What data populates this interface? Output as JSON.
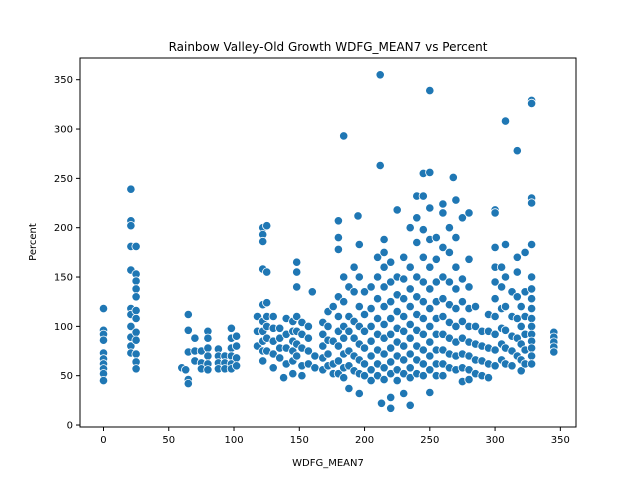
{
  "chart_data": {
    "type": "scatter",
    "title": "Rainbow Valley-Old Growth WDFG_MEAN7 vs Percent",
    "xlabel": "WDFG_MEAN7",
    "ylabel": "Percent",
    "xlim": [
      -18,
      362
    ],
    "ylim": [
      -2,
      372
    ],
    "xticks": [
      0,
      50,
      100,
      150,
      200,
      250,
      300,
      350
    ],
    "yticks": [
      0,
      50,
      100,
      150,
      200,
      250,
      300,
      350
    ],
    "grid": false,
    "marker_color": "#1f77b4",
    "marker_edge": "#ffffff",
    "points": [
      [
        0,
        118
      ],
      [
        0,
        96
      ],
      [
        0,
        92
      ],
      [
        0,
        86
      ],
      [
        0,
        73
      ],
      [
        0,
        67
      ],
      [
        0,
        62
      ],
      [
        0,
        57
      ],
      [
        0,
        52
      ],
      [
        0,
        45
      ],
      [
        21,
        239
      ],
      [
        21,
        207
      ],
      [
        21,
        202
      ],
      [
        21,
        181
      ],
      [
        21,
        157
      ],
      [
        21,
        118
      ],
      [
        21,
        112
      ],
      [
        21,
        100
      ],
      [
        21,
        89
      ],
      [
        21,
        80
      ],
      [
        21,
        73
      ],
      [
        25,
        181
      ],
      [
        25,
        153
      ],
      [
        25,
        146
      ],
      [
        25,
        138
      ],
      [
        25,
        130
      ],
      [
        25,
        116
      ],
      [
        25,
        108
      ],
      [
        25,
        94
      ],
      [
        25,
        86
      ],
      [
        25,
        72
      ],
      [
        25,
        64
      ],
      [
        25,
        57
      ],
      [
        60,
        58
      ],
      [
        63,
        56
      ],
      [
        65,
        112
      ],
      [
        65,
        96
      ],
      [
        65,
        74
      ],
      [
        65,
        46
      ],
      [
        65,
        42
      ],
      [
        70,
        88
      ],
      [
        70,
        75
      ],
      [
        70,
        65
      ],
      [
        75,
        75
      ],
      [
        75,
        63
      ],
      [
        75,
        57
      ],
      [
        80,
        95
      ],
      [
        80,
        88
      ],
      [
        80,
        78
      ],
      [
        80,
        70
      ],
      [
        80,
        62
      ],
      [
        80,
        56
      ],
      [
        88,
        77
      ],
      [
        88,
        70
      ],
      [
        88,
        63
      ],
      [
        88,
        57
      ],
      [
        93,
        70
      ],
      [
        93,
        63
      ],
      [
        93,
        57
      ],
      [
        98,
        98
      ],
      [
        98,
        88
      ],
      [
        98,
        78
      ],
      [
        98,
        70
      ],
      [
        98,
        62
      ],
      [
        98,
        57
      ],
      [
        102,
        90
      ],
      [
        102,
        80
      ],
      [
        102,
        68
      ],
      [
        102,
        60
      ],
      [
        118,
        110
      ],
      [
        118,
        95
      ],
      [
        118,
        80
      ],
      [
        122,
        200
      ],
      [
        122,
        193
      ],
      [
        122,
        186
      ],
      [
        122,
        158
      ],
      [
        122,
        122
      ],
      [
        122,
        105
      ],
      [
        122,
        95
      ],
      [
        122,
        85
      ],
      [
        122,
        75
      ],
      [
        122,
        65
      ],
      [
        125,
        202
      ],
      [
        125,
        155
      ],
      [
        125,
        124
      ],
      [
        125,
        110
      ],
      [
        125,
        100
      ],
      [
        125,
        88
      ],
      [
        125,
        75
      ],
      [
        130,
        110
      ],
      [
        130,
        98
      ],
      [
        130,
        85
      ],
      [
        130,
        72
      ],
      [
        130,
        58
      ],
      [
        135,
        98
      ],
      [
        135,
        88
      ],
      [
        135,
        78
      ],
      [
        135,
        68
      ],
      [
        138,
        48
      ],
      [
        140,
        108
      ],
      [
        140,
        92
      ],
      [
        140,
        78
      ],
      [
        140,
        62
      ],
      [
        145,
        105
      ],
      [
        145,
        95
      ],
      [
        145,
        85
      ],
      [
        145,
        75
      ],
      [
        145,
        65
      ],
      [
        145,
        52
      ],
      [
        148,
        165
      ],
      [
        148,
        155
      ],
      [
        148,
        140
      ],
      [
        148,
        110
      ],
      [
        148,
        95
      ],
      [
        148,
        82
      ],
      [
        148,
        70
      ],
      [
        152,
        104
      ],
      [
        152,
        92
      ],
      [
        152,
        78
      ],
      [
        152,
        60
      ],
      [
        152,
        50
      ],
      [
        157,
        100
      ],
      [
        157,
        88
      ],
      [
        157,
        75
      ],
      [
        157,
        62
      ],
      [
        160,
        135
      ],
      [
        162,
        70
      ],
      [
        162,
        58
      ],
      [
        168,
        104
      ],
      [
        168,
        92
      ],
      [
        168,
        80
      ],
      [
        168,
        68
      ],
      [
        168,
        56
      ],
      [
        172,
        115
      ],
      [
        172,
        100
      ],
      [
        172,
        86
      ],
      [
        172,
        72
      ],
      [
        172,
        60
      ],
      [
        176,
        120
      ],
      [
        176,
        85
      ],
      [
        176,
        62
      ],
      [
        176,
        52
      ],
      [
        180,
        207
      ],
      [
        180,
        190
      ],
      [
        180,
        178
      ],
      [
        180,
        130
      ],
      [
        180,
        110
      ],
      [
        180,
        95
      ],
      [
        180,
        80
      ],
      [
        180,
        65
      ],
      [
        180,
        52
      ],
      [
        184,
        293
      ],
      [
        184,
        150
      ],
      [
        184,
        125
      ],
      [
        184,
        100
      ],
      [
        184,
        88
      ],
      [
        184,
        72
      ],
      [
        184,
        58
      ],
      [
        184,
        48
      ],
      [
        188,
        140
      ],
      [
        188,
        110
      ],
      [
        188,
        95
      ],
      [
        188,
        75
      ],
      [
        188,
        60
      ],
      [
        188,
        37
      ],
      [
        192,
        160
      ],
      [
        192,
        135
      ],
      [
        192,
        105
      ],
      [
        192,
        88
      ],
      [
        192,
        70
      ],
      [
        192,
        55
      ],
      [
        195,
        212
      ],
      [
        196,
        183
      ],
      [
        196,
        150
      ],
      [
        196,
        120
      ],
      [
        196,
        100
      ],
      [
        196,
        82
      ],
      [
        196,
        66
      ],
      [
        196,
        52
      ],
      [
        196,
        32
      ],
      [
        200,
        135
      ],
      [
        200,
        112
      ],
      [
        200,
        95
      ],
      [
        200,
        78
      ],
      [
        200,
        62
      ],
      [
        200,
        50
      ],
      [
        205,
        140
      ],
      [
        205,
        118
      ],
      [
        205,
        100
      ],
      [
        205,
        85
      ],
      [
        205,
        70
      ],
      [
        205,
        56
      ],
      [
        205,
        45
      ],
      [
        210,
        170
      ],
      [
        210,
        150
      ],
      [
        210,
        128
      ],
      [
        210,
        108
      ],
      [
        210,
        92
      ],
      [
        210,
        76
      ],
      [
        210,
        62
      ],
      [
        210,
        50
      ],
      [
        212,
        355
      ],
      [
        212,
        263
      ],
      [
        213,
        22
      ],
      [
        215,
        188
      ],
      [
        215,
        175
      ],
      [
        215,
        160
      ],
      [
        215,
        140
      ],
      [
        215,
        120
      ],
      [
        215,
        102
      ],
      [
        215,
        88
      ],
      [
        215,
        72
      ],
      [
        215,
        58
      ],
      [
        215,
        46
      ],
      [
        220,
        165
      ],
      [
        220,
        145
      ],
      [
        220,
        125
      ],
      [
        220,
        108
      ],
      [
        220,
        92
      ],
      [
        220,
        78
      ],
      [
        220,
        64
      ],
      [
        220,
        52
      ],
      [
        220,
        28
      ],
      [
        220,
        17
      ],
      [
        225,
        218
      ],
      [
        225,
        150
      ],
      [
        225,
        132
      ],
      [
        225,
        115
      ],
      [
        225,
        98
      ],
      [
        225,
        84
      ],
      [
        225,
        70
      ],
      [
        225,
        56
      ],
      [
        225,
        45
      ],
      [
        230,
        170
      ],
      [
        230,
        148
      ],
      [
        230,
        128
      ],
      [
        230,
        110
      ],
      [
        230,
        95
      ],
      [
        230,
        80
      ],
      [
        230,
        66
      ],
      [
        230,
        52
      ],
      [
        230,
        32
      ],
      [
        235,
        200
      ],
      [
        235,
        160
      ],
      [
        235,
        138
      ],
      [
        235,
        120
      ],
      [
        235,
        102
      ],
      [
        235,
        88
      ],
      [
        235,
        72
      ],
      [
        235,
        58
      ],
      [
        235,
        48
      ],
      [
        235,
        20
      ],
      [
        240,
        232
      ],
      [
        240,
        210
      ],
      [
        240,
        185
      ],
      [
        240,
        150
      ],
      [
        240,
        130
      ],
      [
        240,
        112
      ],
      [
        240,
        96
      ],
      [
        240,
        80
      ],
      [
        240,
        66
      ],
      [
        240,
        52
      ],
      [
        245,
        255
      ],
      [
        245,
        232
      ],
      [
        245,
        198
      ],
      [
        245,
        170
      ],
      [
        245,
        145
      ],
      [
        245,
        125
      ],
      [
        245,
        108
      ],
      [
        245,
        92
      ],
      [
        245,
        76
      ],
      [
        245,
        62
      ],
      [
        245,
        50
      ],
      [
        250,
        339
      ],
      [
        250,
        256
      ],
      [
        250,
        220
      ],
      [
        250,
        188
      ],
      [
        250,
        160
      ],
      [
        250,
        138
      ],
      [
        250,
        118
      ],
      [
        250,
        100
      ],
      [
        250,
        84
      ],
      [
        250,
        70
      ],
      [
        250,
        56
      ],
      [
        250,
        33
      ],
      [
        255,
        190
      ],
      [
        255,
        168
      ],
      [
        255,
        145
      ],
      [
        255,
        125
      ],
      [
        255,
        108
      ],
      [
        255,
        92
      ],
      [
        255,
        76
      ],
      [
        255,
        62
      ],
      [
        255,
        50
      ],
      [
        260,
        224
      ],
      [
        260,
        215
      ],
      [
        260,
        180
      ],
      [
        260,
        150
      ],
      [
        260,
        128
      ],
      [
        260,
        110
      ],
      [
        260,
        92
      ],
      [
        260,
        76
      ],
      [
        260,
        62
      ],
      [
        260,
        50
      ],
      [
        265,
        200
      ],
      [
        265,
        175
      ],
      [
        265,
        145
      ],
      [
        265,
        122
      ],
      [
        265,
        104
      ],
      [
        265,
        88
      ],
      [
        265,
        72
      ],
      [
        265,
        58
      ],
      [
        268,
        251
      ],
      [
        270,
        228
      ],
      [
        270,
        190
      ],
      [
        270,
        160
      ],
      [
        270,
        138
      ],
      [
        270,
        118
      ],
      [
        270,
        100
      ],
      [
        270,
        84
      ],
      [
        270,
        70
      ],
      [
        270,
        56
      ],
      [
        275,
        210
      ],
      [
        275,
        148
      ],
      [
        275,
        125
      ],
      [
        275,
        105
      ],
      [
        275,
        88
      ],
      [
        275,
        72
      ],
      [
        275,
        58
      ],
      [
        275,
        44
      ],
      [
        280,
        215
      ],
      [
        280,
        168
      ],
      [
        280,
        140
      ],
      [
        280,
        118
      ],
      [
        280,
        100
      ],
      [
        280,
        84
      ],
      [
        280,
        70
      ],
      [
        280,
        56
      ],
      [
        280,
        46
      ],
      [
        285,
        120
      ],
      [
        285,
        100
      ],
      [
        285,
        82
      ],
      [
        285,
        66
      ],
      [
        285,
        52
      ],
      [
        290,
        95
      ],
      [
        290,
        80
      ],
      [
        290,
        65
      ],
      [
        290,
        50
      ],
      [
        295,
        112
      ],
      [
        295,
        95
      ],
      [
        295,
        78
      ],
      [
        295,
        62
      ],
      [
        295,
        48
      ],
      [
        300,
        218
      ],
      [
        300,
        215
      ],
      [
        300,
        180
      ],
      [
        300,
        160
      ],
      [
        300,
        145
      ],
      [
        300,
        128
      ],
      [
        300,
        110
      ],
      [
        300,
        92
      ],
      [
        300,
        76
      ],
      [
        300,
        60
      ],
      [
        305,
        160
      ],
      [
        305,
        140
      ],
      [
        305,
        118
      ],
      [
        305,
        98
      ],
      [
        305,
        82
      ],
      [
        305,
        66
      ],
      [
        308,
        308
      ],
      [
        308,
        183
      ],
      [
        308,
        150
      ],
      [
        308,
        120
      ],
      [
        308,
        96
      ],
      [
        308,
        78
      ],
      [
        308,
        62
      ],
      [
        313,
        135
      ],
      [
        313,
        110
      ],
      [
        313,
        90
      ],
      [
        313,
        75
      ],
      [
        313,
        60
      ],
      [
        317,
        278
      ],
      [
        317,
        170
      ],
      [
        317,
        155
      ],
      [
        317,
        130
      ],
      [
        317,
        108
      ],
      [
        317,
        88
      ],
      [
        317,
        70
      ],
      [
        320,
        120
      ],
      [
        320,
        100
      ],
      [
        320,
        82
      ],
      [
        320,
        66
      ],
      [
        320,
        55
      ],
      [
        323,
        175
      ],
      [
        323,
        135
      ],
      [
        323,
        110
      ],
      [
        323,
        92
      ],
      [
        323,
        76
      ],
      [
        323,
        62
      ],
      [
        328,
        329
      ],
      [
        328,
        326
      ],
      [
        328,
        230
      ],
      [
        328,
        225
      ],
      [
        328,
        183
      ],
      [
        328,
        150
      ],
      [
        328,
        138
      ],
      [
        328,
        128
      ],
      [
        328,
        118
      ],
      [
        328,
        108
      ],
      [
        328,
        100
      ],
      [
        328,
        92
      ],
      [
        328,
        85
      ],
      [
        328,
        78
      ],
      [
        328,
        70
      ],
      [
        328,
        62
      ],
      [
        345,
        94
      ],
      [
        345,
        89
      ],
      [
        345,
        84
      ],
      [
        345,
        79
      ],
      [
        345,
        74
      ]
    ]
  }
}
